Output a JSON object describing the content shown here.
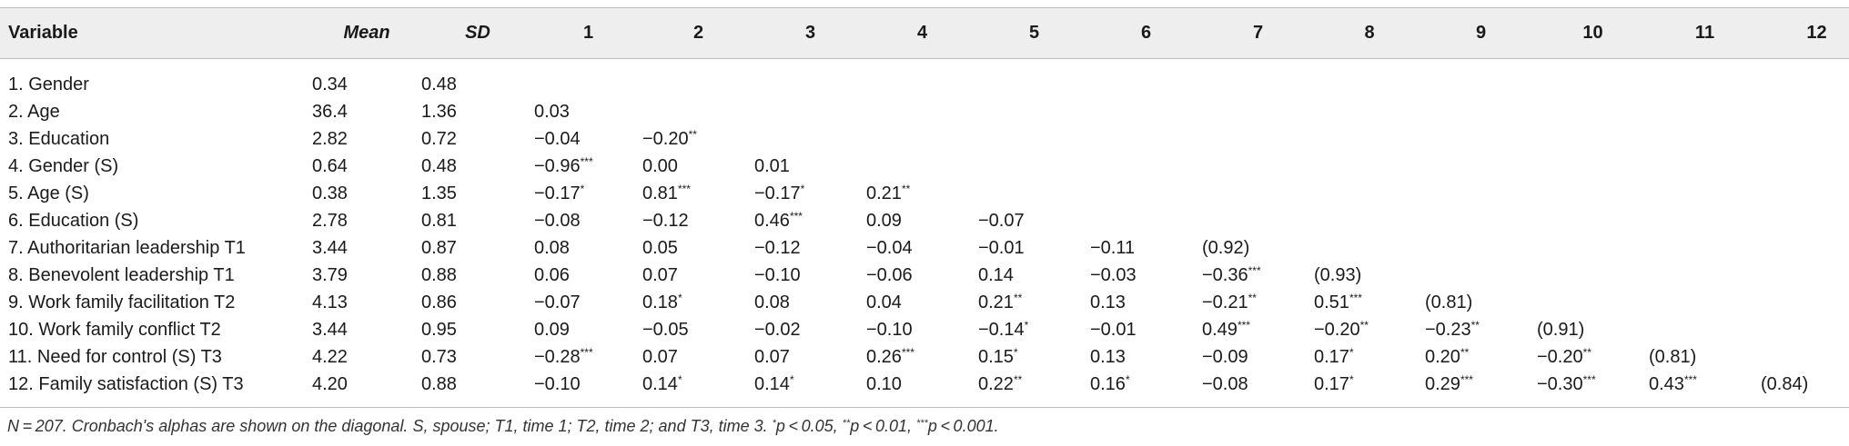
{
  "headers": [
    "Variable",
    "Mean",
    "SD",
    "1",
    "2",
    "3",
    "4",
    "5",
    "6",
    "7",
    "8",
    "9",
    "10",
    "11",
    "12"
  ],
  "rows": [
    {
      "variable": "1. Gender",
      "cells": [
        "0.34",
        "0.48",
        "",
        "",
        "",
        "",
        "",
        "",
        "",
        "",
        "",
        "",
        "",
        ""
      ]
    },
    {
      "variable": "2. Age",
      "cells": [
        "36.4",
        "1.36",
        "0.03",
        "",
        "",
        "",
        "",
        "",
        "",
        "",
        "",
        "",
        "",
        ""
      ]
    },
    {
      "variable": "3. Education",
      "cells": [
        "2.82",
        "0.72",
        "−0.04",
        "−0.20**",
        "",
        "",
        "",
        "",
        "",
        "",
        "",
        "",
        "",
        ""
      ]
    },
    {
      "variable": "4. Gender (S)",
      "cells": [
        "0.64",
        "0.48",
        "−0.96***",
        "0.00",
        "0.01",
        "",
        "",
        "",
        "",
        "",
        "",
        "",
        "",
        ""
      ]
    },
    {
      "variable": "5. Age (S)",
      "cells": [
        "0.38",
        "1.35",
        "−0.17*",
        "0.81***",
        "−0.17*",
        "0.21**",
        "",
        "",
        "",
        "",
        "",
        "",
        "",
        ""
      ]
    },
    {
      "variable": "6. Education (S)",
      "cells": [
        "2.78",
        "0.81",
        "−0.08",
        "−0.12",
        "0.46***",
        "0.09",
        "−0.07",
        "",
        "",
        "",
        "",
        "",
        "",
        ""
      ]
    },
    {
      "variable": "7. Authoritarian leadership T1",
      "cells": [
        "3.44",
        "0.87",
        "0.08",
        "0.05",
        "−0.12",
        "−0.04",
        "−0.01",
        "−0.11",
        "(0.92)",
        "",
        "",
        "",
        "",
        ""
      ]
    },
    {
      "variable": "8. Benevolent leadership T1",
      "cells": [
        "3.79",
        "0.88",
        "0.06",
        "0.07",
        "−0.10",
        "−0.06",
        "0.14",
        "−0.03",
        "−0.36***",
        "(0.93)",
        "",
        "",
        "",
        ""
      ]
    },
    {
      "variable": "9. Work family facilitation T2",
      "cells": [
        "4.13",
        "0.86",
        "−0.07",
        "0.18*",
        "0.08",
        "0.04",
        "0.21**",
        "0.13",
        "−0.21**",
        "0.51***",
        "(0.81)",
        "",
        "",
        ""
      ]
    },
    {
      "variable": "10. Work family conflict T2",
      "cells": [
        "3.44",
        "0.95",
        "0.09",
        "−0.05",
        "−0.02",
        "−0.10",
        "−0.14*",
        "−0.01",
        "0.49***",
        "−0.20**",
        "−0.23**",
        "(0.91)",
        "",
        ""
      ]
    },
    {
      "variable": "11. Need for control (S) T3",
      "cells": [
        "4.22",
        "0.73",
        "−0.28***",
        "0.07",
        "0.07",
        "0.26***",
        "0.15*",
        "0.13",
        "−0.09",
        "0.17*",
        "0.20**",
        "−0.20**",
        "(0.81)",
        ""
      ]
    },
    {
      "variable": "12. Family satisfaction (S) T3",
      "cells": [
        "4.20",
        "0.88",
        "−0.10",
        "0.14*",
        "0.14*",
        "0.10",
        "0.22**",
        "0.16*",
        "−0.08",
        "0.17*",
        "0.29***",
        "−0.30***",
        "0.43***",
        "(0.84)"
      ]
    }
  ],
  "note": "N = 207. Cronbach's alphas are shown on the diagonal. S, spouse; T1, time 1; T2, time 2; and T3, time 3. *p < 0.05, **p < 0.01, ***p < 0.001."
}
